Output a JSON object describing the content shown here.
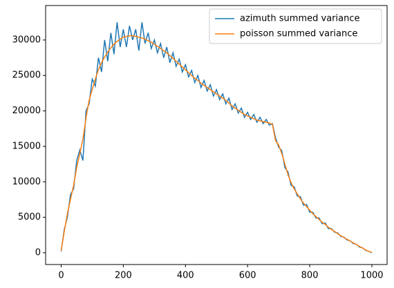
{
  "chart_data": {
    "type": "line",
    "x": [
      0,
      10,
      20,
      30,
      40,
      50,
      60,
      70,
      80,
      90,
      100,
      110,
      120,
      130,
      140,
      150,
      160,
      170,
      180,
      190,
      200,
      210,
      220,
      230,
      240,
      250,
      260,
      270,
      280,
      290,
      300,
      310,
      320,
      330,
      340,
      350,
      360,
      370,
      380,
      390,
      400,
      410,
      420,
      430,
      440,
      450,
      460,
      470,
      480,
      490,
      500,
      510,
      520,
      530,
      540,
      550,
      560,
      570,
      580,
      590,
      600,
      610,
      620,
      630,
      640,
      650,
      660,
      670,
      680,
      690,
      700,
      710,
      720,
      730,
      740,
      750,
      760,
      770,
      780,
      790,
      800,
      810,
      820,
      830,
      840,
      850,
      860,
      870,
      880,
      890,
      900,
      910,
      920,
      930,
      940,
      950,
      960,
      970,
      980,
      990,
      1000
    ],
    "series": [
      {
        "name": "azimuth summed variance",
        "color": "#1f77b4",
        "values": [
          200,
          3300,
          5000,
          8200,
          9000,
          13000,
          14500,
          13000,
          20000,
          21000,
          24500,
          23500,
          27500,
          25500,
          30000,
          27000,
          31000,
          28000,
          32500,
          29000,
          31500,
          29000,
          32000,
          30000,
          31500,
          28500,
          32500,
          29500,
          31000,
          28800,
          30000,
          28200,
          29500,
          27500,
          29000,
          26800,
          28200,
          26300,
          27300,
          25500,
          26500,
          24800,
          25700,
          24000,
          25000,
          23300,
          24300,
          22800,
          23700,
          22100,
          23000,
          21600,
          22400,
          21000,
          21800,
          20200,
          21000,
          19700,
          20400,
          19100,
          19800,
          18800,
          19500,
          18400,
          19100,
          18200,
          18800,
          18000,
          18200,
          16200,
          14900,
          14400,
          12000,
          11400,
          9500,
          9300,
          8000,
          7900,
          6700,
          6800,
          5700,
          5700,
          4900,
          4900,
          4100,
          4200,
          3400,
          3400,
          2900,
          2800,
          2300,
          2200,
          1800,
          1700,
          1300,
          1200,
          800,
          700,
          350,
          200,
          0
        ]
      },
      {
        "name": "poisson summed variance",
        "color": "#ff7f0e",
        "values": [
          300,
          3000,
          5500,
          7500,
          9500,
          12000,
          14000,
          16000,
          19000,
          21500,
          23000,
          24500,
          25800,
          26800,
          27600,
          28300,
          28900,
          29400,
          29800,
          30100,
          30400,
          30500,
          30600,
          30600,
          30500,
          30400,
          30300,
          30100,
          29900,
          29700,
          29400,
          29100,
          28800,
          28500,
          28200,
          27800,
          27400,
          27000,
          26600,
          26200,
          25800,
          25400,
          25000,
          24600,
          24300,
          23900,
          23600,
          23300,
          23000,
          22700,
          22400,
          22100,
          21800,
          21500,
          21100,
          20700,
          20400,
          20100,
          19800,
          19500,
          19300,
          19100,
          18900,
          18700,
          18600,
          18500,
          18400,
          18300,
          18100,
          15800,
          15200,
          14000,
          12500,
          11000,
          9900,
          9000,
          8300,
          7600,
          7000,
          6500,
          6000,
          5500,
          5100,
          4700,
          4300,
          4000,
          3600,
          3300,
          3000,
          2700,
          2400,
          2150,
          1900,
          1650,
          1400,
          1150,
          900,
          650,
          400,
          200,
          50
        ]
      }
    ],
    "xlim": [
      -50,
      1049
    ],
    "ylim": [
      -1660,
      34860
    ],
    "xticks": [
      0,
      200,
      400,
      600,
      800,
      1000
    ],
    "yticks": [
      0,
      5000,
      10000,
      15000,
      20000,
      25000,
      30000
    ],
    "legend": "upper right"
  }
}
